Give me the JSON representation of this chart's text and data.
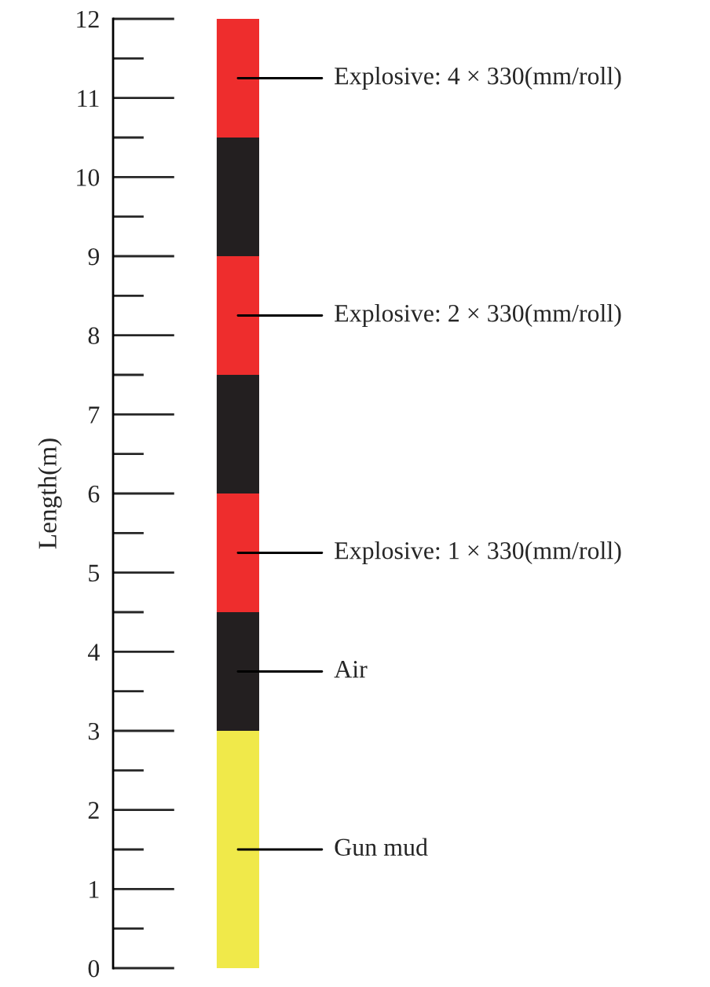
{
  "chart_data": {
    "type": "bar",
    "stacked": true,
    "categories": [
      null
    ],
    "ylabel": "Length(m)",
    "ylim": [
      0,
      12
    ],
    "yticks": [
      0,
      1,
      2,
      3,
      4,
      5,
      6,
      7,
      8,
      9,
      10,
      11,
      12
    ],
    "tick_labels": "y",
    "series": [
      {
        "name": "Gun mud",
        "color": "#f0e94a",
        "values": [
          3
        ]
      },
      {
        "name": "Air",
        "color": "#231f20",
        "values": [
          1.5
        ]
      },
      {
        "name": "Explosive: 1 × 330(mm/roll)",
        "color": "#ee2d2d",
        "values": [
          1.5
        ]
      },
      {
        "color": "#231f20",
        "values": [
          1.5
        ]
      },
      {
        "name": "Explosive: 2 × 330(mm/roll)",
        "color": "#ee2d2d",
        "values": [
          1.5
        ]
      },
      {
        "color": "#231f20",
        "values": [
          1.5
        ]
      },
      {
        "name": "Explosive: 4 × 330(mm/roll)",
        "color": "#ee2d2d",
        "values": [
          1.5
        ]
      }
    ]
  }
}
